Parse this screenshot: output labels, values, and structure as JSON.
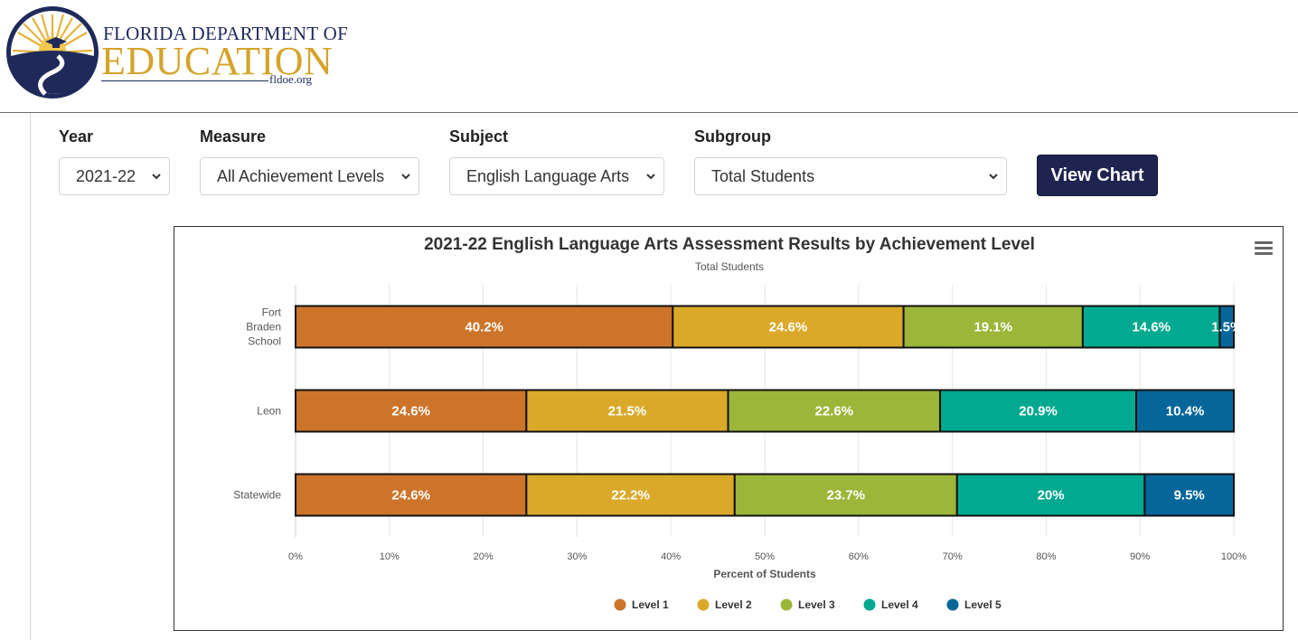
{
  "logo": {
    "line1": "FLORIDA DEPARTMENT OF",
    "line2": "EDUCATION",
    "line3": "fldoe.org",
    "colors": {
      "navy": "#1f2a5b",
      "gold": "#d4a32a"
    }
  },
  "filters": {
    "year": {
      "label": "Year",
      "value": "2021-22"
    },
    "measure": {
      "label": "Measure",
      "value": "All Achievement Levels"
    },
    "subject": {
      "label": "Subject",
      "value": "English Language Arts"
    },
    "subgroup": {
      "label": "Subgroup",
      "value": "Total Students"
    },
    "view_button": "View Chart"
  },
  "chart_data": {
    "type": "bar",
    "orientation": "horizontal",
    "stacked": true,
    "title": "2021-22 English Language Arts Assessment Results by Achievement Level",
    "subtitle": "Total Students",
    "categories": [
      [
        "Fort",
        "Braden",
        "School"
      ],
      [
        "Leon"
      ],
      [
        "Statewide"
      ]
    ],
    "series": [
      {
        "name": "Level 1",
        "color": "#cd742b",
        "values": [
          40.2,
          24.6,
          24.6
        ]
      },
      {
        "name": "Level 2",
        "color": "#dba92a",
        "values": [
          24.6,
          21.5,
          22.2
        ]
      },
      {
        "name": "Level 3",
        "color": "#9cb63a",
        "values": [
          19.1,
          22.6,
          23.7
        ]
      },
      {
        "name": "Level 4",
        "color": "#00a98f",
        "values": [
          14.6,
          20.9,
          20
        ]
      },
      {
        "name": "Level 5",
        "color": "#05669a",
        "values": [
          1.5,
          10.4,
          9.5
        ]
      }
    ],
    "xlabel": "Percent of Students",
    "xlim": [
      0,
      100
    ],
    "xticks": [
      "0%",
      "10%",
      "20%",
      "30%",
      "40%",
      "50%",
      "60%",
      "70%",
      "80%",
      "90%",
      "100%"
    ],
    "grid": true,
    "legend": "bottom"
  }
}
